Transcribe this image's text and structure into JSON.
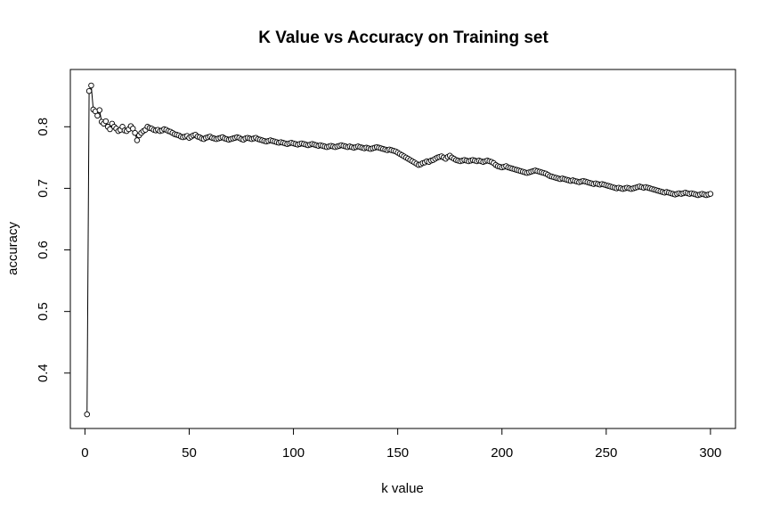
{
  "chart_data": {
    "type": "line",
    "title": "K Value vs Accuracy on Training set",
    "xlabel": "k value",
    "ylabel": "accuracy",
    "xlim": [
      -7,
      312
    ],
    "ylim": [
      0.31,
      0.893
    ],
    "xticks": [
      0,
      50,
      100,
      150,
      200,
      250,
      300
    ],
    "xtick_labels": [
      "0",
      "50",
      "100",
      "150",
      "200",
      "250",
      "300"
    ],
    "yticks": [
      0.4,
      0.5,
      0.6,
      0.7,
      0.8
    ],
    "ytick_labels": [
      "0.4",
      "0.5",
      "0.6",
      "0.7",
      "0.8"
    ],
    "grid": false,
    "legend": "none",
    "line_color": "#000000",
    "marker": "open-circle",
    "series": [
      {
        "x_start": 1,
        "x_step": 1,
        "values": [
          0.333,
          0.858,
          0.867,
          0.828,
          0.825,
          0.818,
          0.827,
          0.808,
          0.805,
          0.809,
          0.8,
          0.796,
          0.805,
          0.8,
          0.797,
          0.793,
          0.795,
          0.8,
          0.794,
          0.793,
          0.796,
          0.801,
          0.797,
          0.79,
          0.778,
          0.786,
          0.79,
          0.793,
          0.795,
          0.8,
          0.798,
          0.797,
          0.795,
          0.794,
          0.795,
          0.793,
          0.794,
          0.796,
          0.795,
          0.793,
          0.792,
          0.79,
          0.788,
          0.787,
          0.786,
          0.784,
          0.783,
          0.784,
          0.785,
          0.782,
          0.784,
          0.786,
          0.787,
          0.784,
          0.783,
          0.781,
          0.78,
          0.782,
          0.783,
          0.784,
          0.782,
          0.781,
          0.78,
          0.781,
          0.782,
          0.783,
          0.781,
          0.78,
          0.779,
          0.78,
          0.781,
          0.782,
          0.783,
          0.782,
          0.78,
          0.779,
          0.781,
          0.782,
          0.781,
          0.78,
          0.781,
          0.782,
          0.78,
          0.779,
          0.778,
          0.777,
          0.776,
          0.777,
          0.778,
          0.777,
          0.776,
          0.775,
          0.774,
          0.775,
          0.774,
          0.773,
          0.772,
          0.773,
          0.774,
          0.773,
          0.772,
          0.771,
          0.772,
          0.773,
          0.772,
          0.771,
          0.77,
          0.771,
          0.772,
          0.771,
          0.77,
          0.769,
          0.77,
          0.769,
          0.768,
          0.767,
          0.768,
          0.769,
          0.768,
          0.767,
          0.768,
          0.769,
          0.77,
          0.769,
          0.768,
          0.767,
          0.768,
          0.767,
          0.766,
          0.767,
          0.768,
          0.767,
          0.766,
          0.765,
          0.766,
          0.765,
          0.764,
          0.765,
          0.766,
          0.767,
          0.766,
          0.765,
          0.764,
          0.763,
          0.762,
          0.763,
          0.762,
          0.761,
          0.76,
          0.758,
          0.756,
          0.754,
          0.752,
          0.75,
          0.748,
          0.746,
          0.744,
          0.742,
          0.74,
          0.738,
          0.739,
          0.741,
          0.742,
          0.744,
          0.743,
          0.745,
          0.746,
          0.748,
          0.75,
          0.751,
          0.752,
          0.75,
          0.748,
          0.751,
          0.753,
          0.75,
          0.748,
          0.746,
          0.745,
          0.744,
          0.745,
          0.746,
          0.745,
          0.744,
          0.745,
          0.746,
          0.745,
          0.744,
          0.745,
          0.744,
          0.743,
          0.744,
          0.745,
          0.744,
          0.743,
          0.741,
          0.738,
          0.736,
          0.735,
          0.734,
          0.735,
          0.736,
          0.734,
          0.733,
          0.732,
          0.731,
          0.73,
          0.729,
          0.728,
          0.727,
          0.726,
          0.725,
          0.726,
          0.727,
          0.728,
          0.729,
          0.728,
          0.727,
          0.726,
          0.725,
          0.724,
          0.722,
          0.72,
          0.719,
          0.718,
          0.717,
          0.716,
          0.715,
          0.716,
          0.715,
          0.714,
          0.713,
          0.712,
          0.713,
          0.712,
          0.711,
          0.71,
          0.711,
          0.712,
          0.711,
          0.71,
          0.709,
          0.708,
          0.707,
          0.708,
          0.707,
          0.706,
          0.707,
          0.706,
          0.705,
          0.704,
          0.703,
          0.702,
          0.701,
          0.7,
          0.701,
          0.7,
          0.699,
          0.7,
          0.701,
          0.7,
          0.699,
          0.7,
          0.701,
          0.702,
          0.703,
          0.702,
          0.701,
          0.702,
          0.701,
          0.7,
          0.699,
          0.698,
          0.697,
          0.696,
          0.695,
          0.694,
          0.693,
          0.694,
          0.693,
          0.692,
          0.691,
          0.69,
          0.691,
          0.692,
          0.691,
          0.692,
          0.693,
          0.692,
          0.691,
          0.692,
          0.691,
          0.69,
          0.689,
          0.69,
          0.691,
          0.69,
          0.689,
          0.69,
          0.691
        ]
      }
    ]
  }
}
